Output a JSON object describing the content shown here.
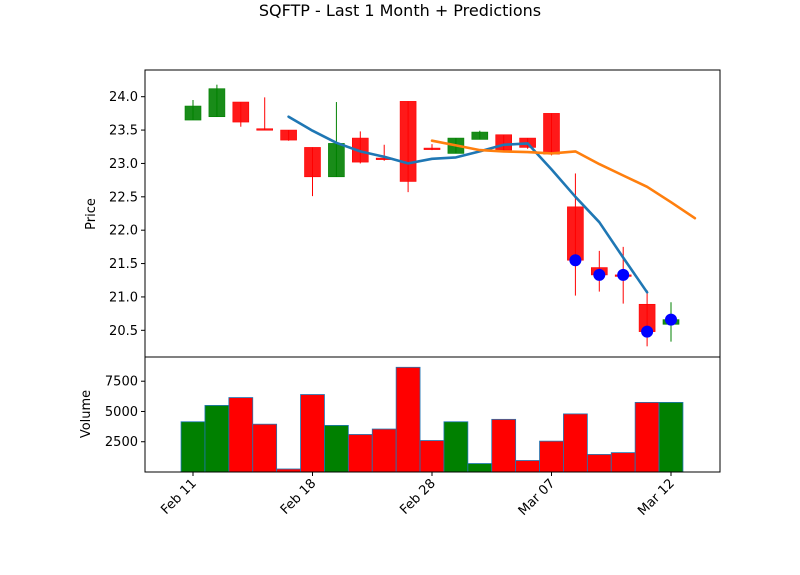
{
  "chart_data": {
    "type": "candlestick",
    "title": "SQFTP - Last 1 Month + Predictions",
    "x_tick_labels": [
      "Feb 11",
      "Feb 18",
      "Feb 28",
      "Mar 07",
      "Mar 12"
    ],
    "x_tick_indices": [
      0,
      5,
      10,
      15,
      20
    ],
    "price_panel": {
      "ylabel": "Price",
      "ylim": [
        20.1,
        24.4
      ],
      "yticks": [
        20.5,
        21.0,
        21.5,
        22.0,
        22.5,
        23.0,
        23.5,
        24.0
      ],
      "candles": [
        {
          "o": 23.65,
          "h": 23.95,
          "l": 23.65,
          "c": 23.86,
          "up": true
        },
        {
          "o": 23.7,
          "h": 24.18,
          "l": 23.7,
          "c": 24.12,
          "up": true
        },
        {
          "o": 23.92,
          "h": 23.92,
          "l": 23.55,
          "c": 23.62,
          "up": false
        },
        {
          "o": 23.52,
          "h": 23.99,
          "l": 23.5,
          "c": 23.5,
          "up": false
        },
        {
          "o": 23.5,
          "h": 23.5,
          "l": 23.34,
          "c": 23.35,
          "up": false
        },
        {
          "o": 23.24,
          "h": 23.24,
          "l": 22.51,
          "c": 22.8,
          "up": false
        },
        {
          "o": 22.8,
          "h": 23.92,
          "l": 22.8,
          "c": 23.3,
          "up": true
        },
        {
          "o": 23.38,
          "h": 23.48,
          "l": 23.0,
          "c": 23.02,
          "up": false
        },
        {
          "o": 23.08,
          "h": 23.28,
          "l": 23.04,
          "c": 23.06,
          "up": false
        },
        {
          "o": 23.93,
          "h": 23.93,
          "l": 22.57,
          "c": 22.73,
          "up": false
        },
        {
          "o": 23.23,
          "h": 23.29,
          "l": 23.2,
          "c": 23.21,
          "up": false
        },
        {
          "o": 23.15,
          "h": 23.38,
          "l": 23.15,
          "c": 23.38,
          "up": true
        },
        {
          "o": 23.36,
          "h": 23.49,
          "l": 23.36,
          "c": 23.47,
          "up": true
        },
        {
          "o": 23.43,
          "h": 23.43,
          "l": 23.18,
          "c": 23.2,
          "up": false
        },
        {
          "o": 23.38,
          "h": 23.38,
          "l": 23.22,
          "c": 23.24,
          "up": false
        },
        {
          "o": 23.75,
          "h": 23.75,
          "l": 23.12,
          "c": 23.14,
          "up": false
        },
        {
          "o": 22.35,
          "h": 22.85,
          "l": 21.02,
          "c": 21.55,
          "up": false
        },
        {
          "o": 21.44,
          "h": 21.69,
          "l": 21.08,
          "c": 21.33,
          "up": false
        },
        {
          "o": 21.33,
          "h": 21.75,
          "l": 20.9,
          "c": 21.33,
          "up": false
        },
        {
          "o": 20.89,
          "h": 21.1,
          "l": 20.26,
          "c": 20.48,
          "up": false
        },
        {
          "o": 20.59,
          "h": 20.92,
          "l": 20.33,
          "c": 20.66,
          "up": true
        }
      ],
      "blue_line": {
        "start_index": 4,
        "values": [
          23.7,
          23.49,
          23.31,
          23.18,
          23.1,
          23.0,
          23.07,
          23.09,
          23.18,
          23.28,
          23.3,
          22.91,
          22.5,
          22.12,
          21.59,
          21.07
        ]
      },
      "orange_line": {
        "start_index": 10,
        "values": [
          23.34,
          23.27,
          23.2,
          23.18,
          23.17,
          23.15,
          23.18,
          22.99,
          22.82,
          22.65,
          22.42,
          22.18
        ]
      },
      "prediction_markers": [
        {
          "index": 16,
          "value": 21.55
        },
        {
          "index": 17,
          "value": 21.33
        },
        {
          "index": 18,
          "value": 21.33
        },
        {
          "index": 19,
          "value": 20.48
        },
        {
          "index": 20,
          "value": 20.66
        }
      ]
    },
    "volume_panel": {
      "ylabel": "Volume",
      "ylim": [
        0,
        9500
      ],
      "yticks": [
        2500,
        5000,
        7500
      ],
      "volumes": [
        4150,
        5500,
        6150,
        3950,
        250,
        6400,
        3850,
        3100,
        3550,
        8650,
        2600,
        4150,
        700,
        4350,
        950,
        2550,
        4800,
        1450,
        1600,
        5750,
        5750
      ],
      "up": [
        true,
        true,
        false,
        false,
        false,
        false,
        true,
        false,
        false,
        false,
        false,
        true,
        true,
        false,
        false,
        false,
        false,
        false,
        false,
        false,
        true
      ]
    },
    "colors": {
      "up": "#008000",
      "down": "#ff0000",
      "line1": "#1f77b4",
      "line2": "#ff7f0e",
      "marker": "#0000ff"
    }
  }
}
